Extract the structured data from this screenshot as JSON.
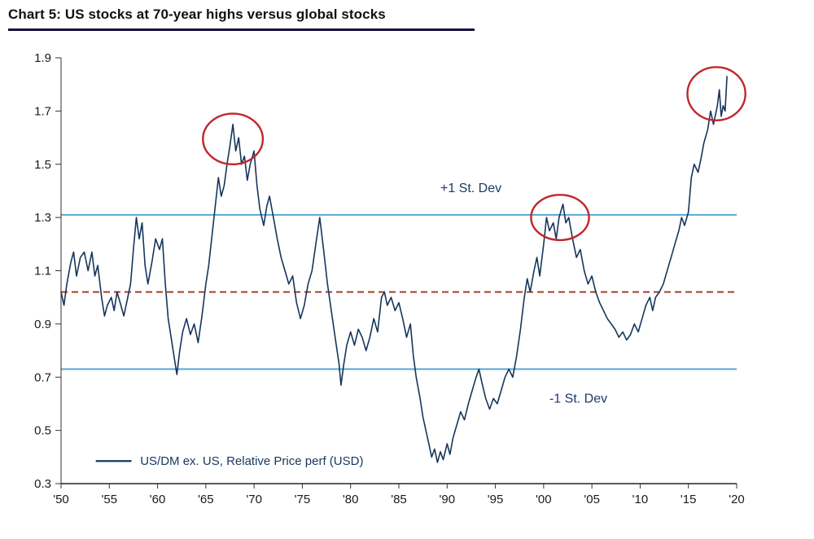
{
  "page": {
    "title": "Chart 5: US stocks at 70-year highs versus global stocks"
  },
  "chart_data": {
    "type": "line",
    "title": "Chart 5: US stocks at 70-year highs versus global stocks",
    "xlabel": "",
    "ylabel": "",
    "x_range": [
      1950,
      2020
    ],
    "y_range": [
      0.3,
      1.9
    ],
    "grid": false,
    "legend_position": "bottom-left-inside",
    "y_ticks": [
      {
        "value": 1.9,
        "label": "1.9"
      },
      {
        "value": 1.7,
        "label": "1.7"
      },
      {
        "value": 1.5,
        "label": "1.5"
      },
      {
        "value": 1.3,
        "label": "1.3"
      },
      {
        "value": 1.1,
        "label": "1.1"
      },
      {
        "value": 0.9,
        "label": "0.9"
      },
      {
        "value": 0.7,
        "label": "0.7"
      },
      {
        "value": 0.5,
        "label": "0.5"
      },
      {
        "value": 0.3,
        "label": "0.3"
      }
    ],
    "x_ticks": [
      {
        "value": 1950,
        "label": "'50"
      },
      {
        "value": 1955,
        "label": "'55"
      },
      {
        "value": 1960,
        "label": "'60"
      },
      {
        "value": 1965,
        "label": "'65"
      },
      {
        "value": 1970,
        "label": "'70"
      },
      {
        "value": 1975,
        "label": "'75"
      },
      {
        "value": 1980,
        "label": "'80"
      },
      {
        "value": 1985,
        "label": "'85"
      },
      {
        "value": 1990,
        "label": "'90"
      },
      {
        "value": 1995,
        "label": "'95"
      },
      {
        "value": 2000,
        "label": "'00"
      },
      {
        "value": 2005,
        "label": "'05"
      },
      {
        "value": 2010,
        "label": "'10"
      },
      {
        "value": 2015,
        "label": "'15"
      },
      {
        "value": 2020,
        "label": "'20"
      }
    ],
    "reference_lines": [
      {
        "name": "mean",
        "value": 1.02,
        "color": "#a3402a",
        "style": "dashed",
        "width": 2
      },
      {
        "name": "plus-1-stdev",
        "value": 1.31,
        "color": "#5ba7d1",
        "style": "solid",
        "width": 2,
        "label": "+1 St. Dev",
        "label_pos": [
          1989.3,
          1.41
        ],
        "label_color": "#1f3864"
      },
      {
        "name": "minus-1-stdev",
        "value": 0.73,
        "color": "#5ba7d1",
        "style": "solid",
        "width": 2,
        "label": "-1 St. Dev",
        "label_pos": [
          2000.6,
          0.62
        ],
        "label_color": "#1f3864"
      }
    ],
    "annotations": {
      "ellipses": [
        {
          "cx": 1967.8,
          "cy": 1.595,
          "rx": 3.1,
          "ry": 0.095,
          "color": "#c0272d"
        },
        {
          "cx": 2001.7,
          "cy": 1.3,
          "rx": 3.0,
          "ry": 0.085,
          "color": "#c0272d"
        },
        {
          "cx": 2017.9,
          "cy": 1.765,
          "rx": 3.0,
          "ry": 0.1,
          "color": "#c0272d"
        }
      ]
    },
    "legend": {
      "label": "US/DM ex. US, Relative Price perf (USD)",
      "color": "#17375e",
      "line_from": [
        1953.6,
        0.385
      ],
      "line_to": [
        1957.3,
        0.385
      ],
      "text_pos": [
        1958.2,
        0.385
      ]
    },
    "series": [
      {
        "name": "US/DM ex. US, Relative Price perf (USD)",
        "color": "#16365c",
        "width": 1.6,
        "points": [
          [
            1950.0,
            1.02
          ],
          [
            1950.3,
            0.97
          ],
          [
            1950.6,
            1.05
          ],
          [
            1951.0,
            1.13
          ],
          [
            1951.3,
            1.17
          ],
          [
            1951.6,
            1.08
          ],
          [
            1952.0,
            1.15
          ],
          [
            1952.4,
            1.17
          ],
          [
            1952.8,
            1.1
          ],
          [
            1953.2,
            1.17
          ],
          [
            1953.5,
            1.08
          ],
          [
            1953.8,
            1.12
          ],
          [
            1954.2,
            1.0
          ],
          [
            1954.5,
            0.93
          ],
          [
            1954.8,
            0.97
          ],
          [
            1955.2,
            1.0
          ],
          [
            1955.5,
            0.95
          ],
          [
            1955.8,
            1.02
          ],
          [
            1956.2,
            0.97
          ],
          [
            1956.5,
            0.93
          ],
          [
            1956.8,
            0.98
          ],
          [
            1957.2,
            1.05
          ],
          [
            1957.5,
            1.18
          ],
          [
            1957.8,
            1.3
          ],
          [
            1958.1,
            1.22
          ],
          [
            1958.4,
            1.28
          ],
          [
            1958.7,
            1.12
          ],
          [
            1959.0,
            1.05
          ],
          [
            1959.4,
            1.13
          ],
          [
            1959.8,
            1.22
          ],
          [
            1960.2,
            1.18
          ],
          [
            1960.5,
            1.22
          ],
          [
            1960.8,
            1.05
          ],
          [
            1961.1,
            0.92
          ],
          [
            1961.4,
            0.85
          ],
          [
            1961.7,
            0.78
          ],
          [
            1962.0,
            0.71
          ],
          [
            1962.3,
            0.8
          ],
          [
            1962.6,
            0.87
          ],
          [
            1963.0,
            0.92
          ],
          [
            1963.4,
            0.86
          ],
          [
            1963.8,
            0.9
          ],
          [
            1964.2,
            0.83
          ],
          [
            1964.6,
            0.93
          ],
          [
            1965.0,
            1.05
          ],
          [
            1965.3,
            1.12
          ],
          [
            1965.6,
            1.22
          ],
          [
            1966.0,
            1.35
          ],
          [
            1966.3,
            1.45
          ],
          [
            1966.6,
            1.38
          ],
          [
            1966.9,
            1.42
          ],
          [
            1967.2,
            1.5
          ],
          [
            1967.5,
            1.57
          ],
          [
            1967.8,
            1.65
          ],
          [
            1968.1,
            1.55
          ],
          [
            1968.4,
            1.6
          ],
          [
            1968.7,
            1.5
          ],
          [
            1969.0,
            1.53
          ],
          [
            1969.3,
            1.44
          ],
          [
            1969.6,
            1.5
          ],
          [
            1970.0,
            1.55
          ],
          [
            1970.3,
            1.42
          ],
          [
            1970.6,
            1.33
          ],
          [
            1971.0,
            1.27
          ],
          [
            1971.3,
            1.34
          ],
          [
            1971.6,
            1.38
          ],
          [
            1972.0,
            1.3
          ],
          [
            1972.4,
            1.22
          ],
          [
            1972.8,
            1.15
          ],
          [
            1973.2,
            1.1
          ],
          [
            1973.6,
            1.05
          ],
          [
            1974.0,
            1.08
          ],
          [
            1974.4,
            0.98
          ],
          [
            1974.8,
            0.92
          ],
          [
            1975.2,
            0.97
          ],
          [
            1975.6,
            1.05
          ],
          [
            1976.0,
            1.1
          ],
          [
            1976.4,
            1.2
          ],
          [
            1976.8,
            1.3
          ],
          [
            1977.2,
            1.18
          ],
          [
            1977.6,
            1.05
          ],
          [
            1978.0,
            0.95
          ],
          [
            1978.4,
            0.85
          ],
          [
            1978.8,
            0.75
          ],
          [
            1979.0,
            0.67
          ],
          [
            1979.3,
            0.75
          ],
          [
            1979.6,
            0.82
          ],
          [
            1980.0,
            0.87
          ],
          [
            1980.4,
            0.82
          ],
          [
            1980.8,
            0.88
          ],
          [
            1981.2,
            0.85
          ],
          [
            1981.6,
            0.8
          ],
          [
            1982.0,
            0.85
          ],
          [
            1982.4,
            0.92
          ],
          [
            1982.8,
            0.87
          ],
          [
            1983.2,
            1.0
          ],
          [
            1983.5,
            1.02
          ],
          [
            1983.8,
            0.97
          ],
          [
            1984.2,
            1.0
          ],
          [
            1984.6,
            0.95
          ],
          [
            1985.0,
            0.98
          ],
          [
            1985.4,
            0.92
          ],
          [
            1985.8,
            0.85
          ],
          [
            1986.2,
            0.9
          ],
          [
            1986.5,
            0.78
          ],
          [
            1986.8,
            0.7
          ],
          [
            1987.2,
            0.62
          ],
          [
            1987.5,
            0.55
          ],
          [
            1987.8,
            0.5
          ],
          [
            1988.1,
            0.45
          ],
          [
            1988.4,
            0.4
          ],
          [
            1988.7,
            0.43
          ],
          [
            1989.0,
            0.38
          ],
          [
            1989.3,
            0.42
          ],
          [
            1989.6,
            0.39
          ],
          [
            1990.0,
            0.45
          ],
          [
            1990.3,
            0.41
          ],
          [
            1990.6,
            0.47
          ],
          [
            1991.0,
            0.52
          ],
          [
            1991.4,
            0.57
          ],
          [
            1991.8,
            0.54
          ],
          [
            1992.2,
            0.6
          ],
          [
            1992.6,
            0.65
          ],
          [
            1993.0,
            0.7
          ],
          [
            1993.3,
            0.73
          ],
          [
            1993.6,
            0.68
          ],
          [
            1994.0,
            0.62
          ],
          [
            1994.4,
            0.58
          ],
          [
            1994.8,
            0.62
          ],
          [
            1995.2,
            0.6
          ],
          [
            1995.6,
            0.65
          ],
          [
            1996.0,
            0.7
          ],
          [
            1996.4,
            0.73
          ],
          [
            1996.8,
            0.7
          ],
          [
            1997.2,
            0.78
          ],
          [
            1997.6,
            0.88
          ],
          [
            1998.0,
            1.0
          ],
          [
            1998.3,
            1.07
          ],
          [
            1998.6,
            1.02
          ],
          [
            1999.0,
            1.1
          ],
          [
            1999.3,
            1.15
          ],
          [
            1999.6,
            1.08
          ],
          [
            2000.0,
            1.2
          ],
          [
            2000.3,
            1.3
          ],
          [
            2000.6,
            1.25
          ],
          [
            2001.0,
            1.28
          ],
          [
            2001.3,
            1.22
          ],
          [
            2001.6,
            1.3
          ],
          [
            2002.0,
            1.35
          ],
          [
            2002.3,
            1.28
          ],
          [
            2002.6,
            1.3
          ],
          [
            2003.0,
            1.22
          ],
          [
            2003.4,
            1.15
          ],
          [
            2003.8,
            1.18
          ],
          [
            2004.2,
            1.1
          ],
          [
            2004.6,
            1.05
          ],
          [
            2005.0,
            1.08
          ],
          [
            2005.4,
            1.02
          ],
          [
            2005.8,
            0.98
          ],
          [
            2006.2,
            0.95
          ],
          [
            2006.6,
            0.92
          ],
          [
            2007.0,
            0.9
          ],
          [
            2007.4,
            0.88
          ],
          [
            2007.8,
            0.85
          ],
          [
            2008.2,
            0.87
          ],
          [
            2008.6,
            0.84
          ],
          [
            2009.0,
            0.86
          ],
          [
            2009.4,
            0.9
          ],
          [
            2009.8,
            0.87
          ],
          [
            2010.2,
            0.92
          ],
          [
            2010.6,
            0.97
          ],
          [
            2011.0,
            1.0
          ],
          [
            2011.3,
            0.95
          ],
          [
            2011.6,
            1.0
          ],
          [
            2012.0,
            1.02
          ],
          [
            2012.4,
            1.05
          ],
          [
            2012.8,
            1.1
          ],
          [
            2013.2,
            1.15
          ],
          [
            2013.6,
            1.2
          ],
          [
            2014.0,
            1.25
          ],
          [
            2014.3,
            1.3
          ],
          [
            2014.6,
            1.27
          ],
          [
            2015.0,
            1.32
          ],
          [
            2015.3,
            1.45
          ],
          [
            2015.6,
            1.5
          ],
          [
            2016.0,
            1.47
          ],
          [
            2016.3,
            1.52
          ],
          [
            2016.6,
            1.58
          ],
          [
            2017.0,
            1.63
          ],
          [
            2017.3,
            1.7
          ],
          [
            2017.6,
            1.65
          ],
          [
            2018.0,
            1.72
          ],
          [
            2018.2,
            1.78
          ],
          [
            2018.4,
            1.68
          ],
          [
            2018.6,
            1.72
          ],
          [
            2018.8,
            1.7
          ],
          [
            2019.0,
            1.83
          ]
        ]
      }
    ]
  }
}
